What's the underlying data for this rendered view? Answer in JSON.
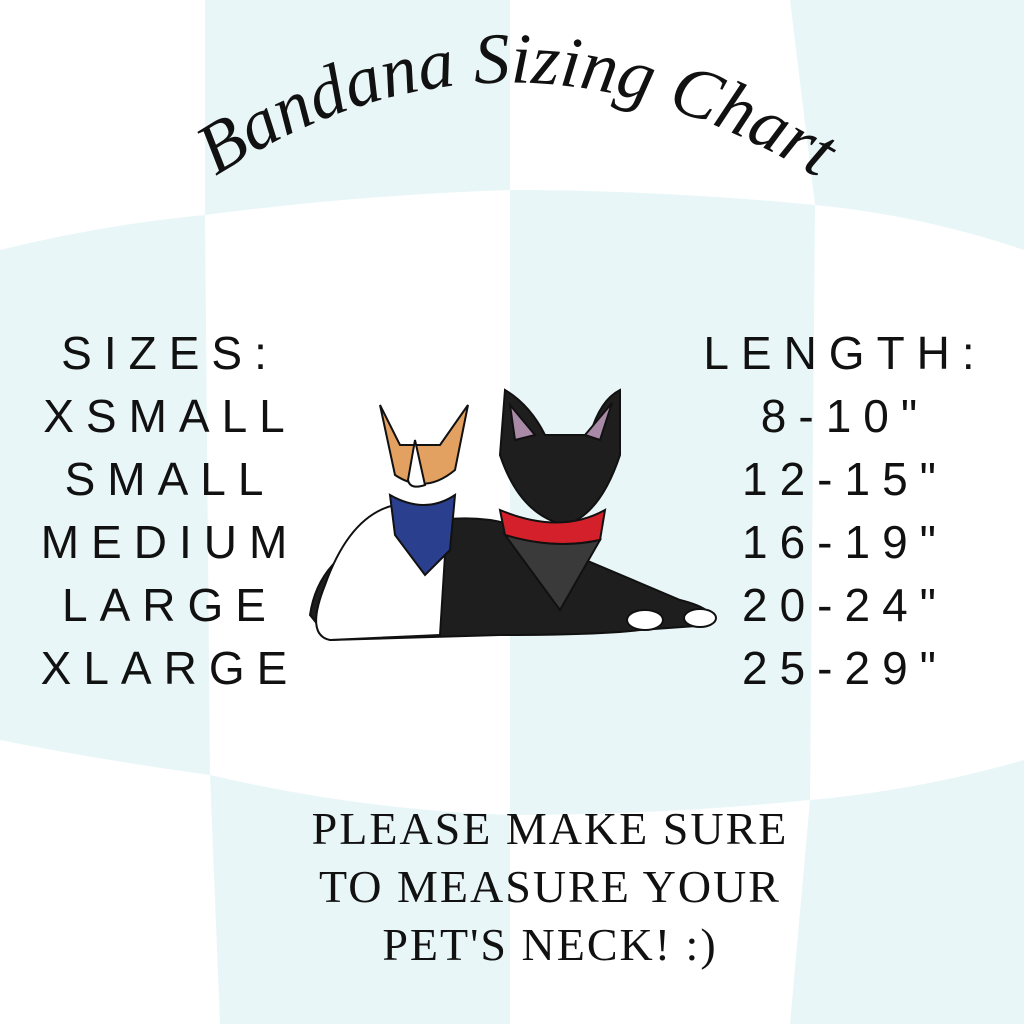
{
  "title": "Bandana  Sizing Chart",
  "sizes": {
    "header": "SIZES:",
    "items": [
      "XSMALL",
      "SMALL",
      "MEDIUM",
      "LARGE",
      "XLARGE"
    ]
  },
  "lengths": {
    "header": "LENGTH:",
    "items": [
      "8-10\"",
      "12-15\"",
      "16-19\"",
      "20-24\"",
      "25-29\""
    ]
  },
  "note": {
    "lines": [
      "PLEASE MAKE SURE",
      "TO MEASURE YOUR",
      "PET'S NECK! :)"
    ]
  },
  "colors": {
    "checker": "#e9f6f7",
    "text": "#111111",
    "bandana_red": "#d4202a",
    "bandana_blue": "#2b3f8f"
  }
}
